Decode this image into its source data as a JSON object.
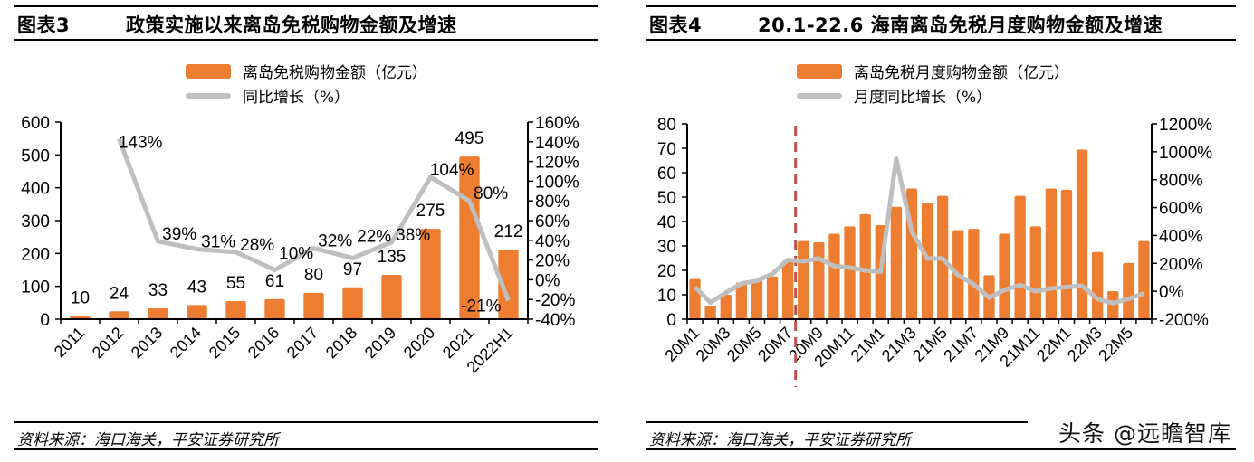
{
  "colors": {
    "bar": "#ED7D31",
    "line": "#BFBFBF",
    "marker_line": "#C0504D",
    "axis": "#000000"
  },
  "left": {
    "title_num": "图表3",
    "title": "政策实施以来离岛免税购物金额及增速",
    "legend": {
      "bar": "离岛免税购物金额（亿元）",
      "line": "同比增长（%）"
    },
    "source": "资料来源：海口海关，平安证券研究所"
  },
  "right": {
    "title_num": "图表4",
    "title": "20.1-22.6 海南离岛免税月度购物金额及增速",
    "legend": {
      "bar": "离岛免税月度购物金额（亿元）",
      "line": "月度同比增长（%）"
    },
    "source": "资料来源：海口海关，平安证券研究所",
    "watermark": "头条 @远瞻智库"
  },
  "chart_data": [
    {
      "type": "bar+line",
      "categories": [
        "2011",
        "2012",
        "2013",
        "2014",
        "2015",
        "2016",
        "2017",
        "2018",
        "2019",
        "2020",
        "2021",
        "2022H1"
      ],
      "series": [
        {
          "name": "离岛免税购物金额（亿元）",
          "type": "bar",
          "axis": "left",
          "values": [
            10,
            24,
            33,
            43,
            55,
            61,
            80,
            97,
            135,
            275,
            495,
            212
          ],
          "labels": [
            "10",
            "24",
            "33",
            "43",
            "55",
            "61",
            "80",
            "97",
            "135",
            "275",
            "495",
            "212"
          ]
        },
        {
          "name": "同比增长（%）",
          "type": "line",
          "axis": "right",
          "values": [
            null,
            143,
            39,
            31,
            28,
            10,
            32,
            22,
            38,
            104,
            80,
            -21
          ],
          "labels": [
            "",
            "143%",
            "39%",
            "31%",
            "28%",
            "10%",
            "32%",
            "22%",
            "38%",
            "104%",
            "80%",
            "-21%"
          ]
        }
      ],
      "yleft": {
        "range": [
          0,
          600
        ],
        "ticks": [
          "0",
          "100",
          "200",
          "300",
          "400",
          "500",
          "600"
        ]
      },
      "yright": {
        "range": [
          -40,
          160
        ],
        "ticks": [
          "-40%",
          "-20%",
          "0%",
          "20%",
          "40%",
          "60%",
          "80%",
          "100%",
          "120%",
          "140%",
          "160%"
        ]
      },
      "grid": false,
      "legend_placement": "top"
    },
    {
      "type": "bar+line",
      "categories": [
        "20M1",
        "20M2",
        "20M3",
        "20M4",
        "20M5",
        "20M6",
        "20M7",
        "20M8",
        "20M9",
        "20M10",
        "20M11",
        "20M12",
        "21M1",
        "21M2",
        "21M3",
        "21M4",
        "21M5",
        "21M6",
        "21M7",
        "21M8",
        "21M9",
        "21M10",
        "21M11",
        "21M12",
        "22M1",
        "22M2",
        "22M3",
        "22M4",
        "22M5",
        "22M6"
      ],
      "tick_labels": [
        "20M1",
        "20M3",
        "20M5",
        "20M7",
        "20M9",
        "20M11",
        "21M1",
        "21M3",
        "21M5",
        "21M7",
        "21M9",
        "21M11",
        "22M1",
        "22M3",
        "22M5"
      ],
      "series": [
        {
          "name": "离岛免税月度购物金额（亿元）",
          "type": "bar",
          "axis": "left",
          "values": [
            16.5,
            5.5,
            10,
            15,
            16,
            17.5,
            24,
            32,
            31.5,
            35,
            38,
            43,
            38.5,
            46,
            53.5,
            47.5,
            50.5,
            36.5,
            37,
            18,
            35,
            50.5,
            38,
            53.5,
            53,
            69.5,
            27.5,
            11.5,
            23,
            32
          ]
        },
        {
          "name": "月度同比增长（%）",
          "type": "line",
          "axis": "right",
          "values": [
            30,
            -80,
            -10,
            55,
            75,
            125,
            225,
            215,
            235,
            180,
            170,
            150,
            140,
            950,
            430,
            235,
            235,
            115,
            50,
            -45,
            10,
            45,
            0,
            20,
            30,
            40,
            -55,
            -85,
            -55,
            -15
          ]
        }
      ],
      "yleft": {
        "range": [
          0,
          80
        ],
        "ticks": [
          "0",
          "10",
          "20",
          "30",
          "40",
          "50",
          "60",
          "70",
          "80"
        ]
      },
      "yright": {
        "range": [
          -200,
          1200
        ],
        "ticks": [
          "-200%",
          "0%",
          "200%",
          "400%",
          "600%",
          "800%",
          "1000%",
          "1200%"
        ]
      },
      "vertical_marker": {
        "between": [
          "20M7",
          "20M8"
        ],
        "style": "dashed"
      },
      "grid": false,
      "legend_placement": "top"
    }
  ]
}
